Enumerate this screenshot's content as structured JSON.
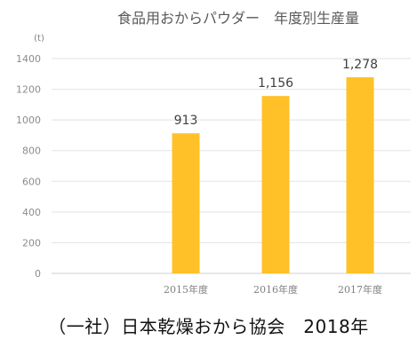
{
  "chart_data": {
    "type": "bar",
    "title": "食品用おからパウダー　年度別生産量",
    "unit_label": "(t)",
    "categories": [
      "2015年度",
      "2016年度",
      "2017年度"
    ],
    "values": [
      913,
      1156,
      1278
    ],
    "data_labels": [
      "913",
      "1,156",
      "1,278"
    ],
    "y_ticks": [
      0,
      200,
      400,
      600,
      800,
      1000,
      1200,
      1400
    ],
    "ylim": [
      0,
      1400
    ],
    "grid": true,
    "bar_color": "#FFC127"
  },
  "caption": "（一社）日本乾燥おから協会　2018年"
}
